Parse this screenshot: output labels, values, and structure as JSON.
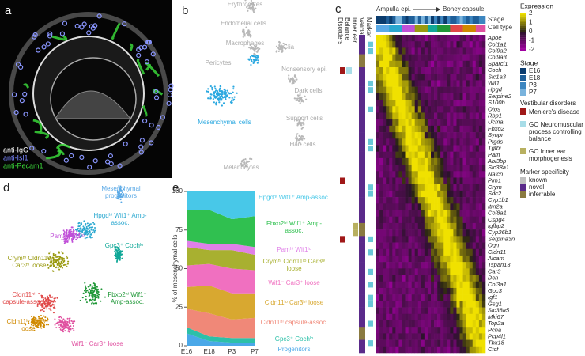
{
  "panel_labels": [
    "a",
    "b",
    "c",
    "d",
    "e"
  ],
  "panel_a": {
    "stains": [
      {
        "name": "anti-IgG",
        "color": "#ffffff"
      },
      {
        "name": "anti-Isl1",
        "color": "#7a86ff"
      },
      {
        "name": "anti-Pecam1",
        "color": "#3ad63a"
      }
    ]
  },
  "panel_b": {
    "cell_types": [
      "Erythrocytes",
      "Endothelial cells",
      "Macrophages",
      "Pericytes",
      "Glia",
      "Nonsensory epi.",
      "Dark cells",
      "Support cells",
      "Hair cells",
      "Mesenchymal cells",
      "Melanocytes"
    ]
  },
  "panel_c": {
    "annotation_columns": [
      "Disorders",
      "Balance",
      "Inner ear",
      "Validation",
      "Marker"
    ],
    "trajectory": [
      "Ampulla epi.",
      "Boney capsule"
    ],
    "bars": [
      "Stage",
      "Cell type"
    ],
    "genes": [
      "Apoe",
      "Col1a1",
      "Col9a2",
      "Col9a3",
      "Sparcl1",
      "Coch",
      "Slc1a3",
      "Wif1",
      "Hpgd",
      "Serpine2",
      "S100b",
      "Otos",
      "Rbp1",
      "Ucma",
      "Fbxo2",
      "Synpr",
      "Ptgds",
      "Tgfbi",
      "Pam",
      "Abi3bp",
      "Slc38a1",
      "Nalcn",
      "Pim1",
      "Crym",
      "Sdc2",
      "Cyp1b1",
      "Itm2a",
      "Col8a1",
      "Cspg4",
      "Igfbp2",
      "Cyp26b1",
      "Serpina3n",
      "Ogn",
      "Cldn11",
      "Alcam",
      "Tspan13",
      "Car3",
      "Dcn",
      "Col3a1",
      "Gpc3",
      "Igf1",
      "Gsg1",
      "Slc38a5",
      "Mki67",
      "Top2a",
      "Pcna",
      "Pcp4l1",
      "Tbx18",
      "Ctcf"
    ],
    "legend": {
      "expression_title": "Expression",
      "expression_ticks": [
        2,
        1,
        0,
        -1,
        -2
      ],
      "stage_title": "Stage",
      "stages": [
        {
          "name": "E16",
          "color": "#0b3c6e"
        },
        {
          "name": "E18",
          "color": "#1f5f99"
        },
        {
          "name": "P3",
          "color": "#3d86c0"
        },
        {
          "name": "P7",
          "color": "#79b3dd"
        }
      ],
      "disorders_title": "Vestibular disorders",
      "disorders": [
        {
          "name": "Meniere's disease",
          "color": "#a01818"
        }
      ],
      "go_terms": [
        {
          "name": "GO Neuromuscular process controlling balance",
          "color": "#a8dde8"
        },
        {
          "name": "GO Inner ear morphogenesis",
          "color": "#b8b060"
        }
      ],
      "specificity_title": "Marker specificity",
      "specificity": [
        {
          "name": "known",
          "color": "#c0c0c0"
        },
        {
          "name": "novel",
          "color": "#5a2a8a"
        },
        {
          "name": "inferrable",
          "color": "#8a7a40"
        }
      ]
    }
  },
  "panel_d": {
    "clusters": [
      {
        "name": "Mesenchymal progenitors",
        "color": "#5aa9e6"
      },
      {
        "name": "Hpgdʰⁱ Wif1⁺ Amp-assoc.",
        "color": "#2aa8d0"
      },
      {
        "name": "Pamʰⁱ Wif1ˡᵒ",
        "color": "#c050d8"
      },
      {
        "name": "Crymʰⁱ Cldn11ˡᵒ Car3ʰⁱ loose",
        "color": "#9a9a10"
      },
      {
        "name": "Gpc3⁺ Cochˡᵒ",
        "color": "#10a898"
      },
      {
        "name": "Fbxo2ʰⁱ Wif1⁺ Amp-assoc.",
        "color": "#209838"
      },
      {
        "name": "Cldn11ʰⁱ capsule-assoc.",
        "color": "#e04848"
      },
      {
        "name": "Cldn11ˡᵒ Car3ʰⁱ loose",
        "color": "#d08a00"
      },
      {
        "name": "Wif1⁻ Car3⁺ loose",
        "color": "#e050a0"
      }
    ]
  },
  "chart_data": {
    "type": "area",
    "ylabel": "% of mesenchymal cells",
    "categories": [
      "E16",
      "E18",
      "P3",
      "P7"
    ],
    "ylim": [
      0,
      100
    ],
    "yticks": [
      0,
      25,
      50,
      75,
      100
    ],
    "series": [
      {
        "name": "Progenitors",
        "color": "#4aa8e8",
        "values": [
          8,
          3,
          2,
          2
        ]
      },
      {
        "name": "Gpc3⁺ Cochˡᵒ",
        "color": "#2cc0a8",
        "values": [
          4,
          3,
          3,
          3
        ]
      },
      {
        "name": "Cldn11ʰⁱ capsule-assoc.",
        "color": "#f08878",
        "values": [
          12,
          15,
          12,
          13
        ]
      },
      {
        "name": "Cldn11ˡᵒ Car3ʰⁱ loose",
        "color": "#d8a830",
        "values": [
          14,
          18,
          17,
          16
        ]
      },
      {
        "name": "Wif1⁻ Car3⁺ loose",
        "color": "#f070c0",
        "values": [
          14,
          14,
          16,
          15
        ]
      },
      {
        "name": "Crymʰⁱ Cldn11ˡᵒ Car3ʰⁱ loose",
        "color": "#a8b030",
        "values": [
          12,
          9,
          12,
          10
        ]
      },
      {
        "name": "Pamʰⁱ Wif1ˡᵒ",
        "color": "#e080e8",
        "values": [
          4,
          4,
          4,
          5
        ]
      },
      {
        "name": "Fbxo2ʰⁱ Wif1⁺ Amp-assoc.",
        "color": "#30c050",
        "values": [
          20,
          22,
          16,
          20
        ]
      },
      {
        "name": "Hpgdʰⁱ Wif1⁺ Amp-assoc.",
        "color": "#48c8e8",
        "values": [
          12,
          12,
          18,
          16
        ]
      }
    ]
  }
}
